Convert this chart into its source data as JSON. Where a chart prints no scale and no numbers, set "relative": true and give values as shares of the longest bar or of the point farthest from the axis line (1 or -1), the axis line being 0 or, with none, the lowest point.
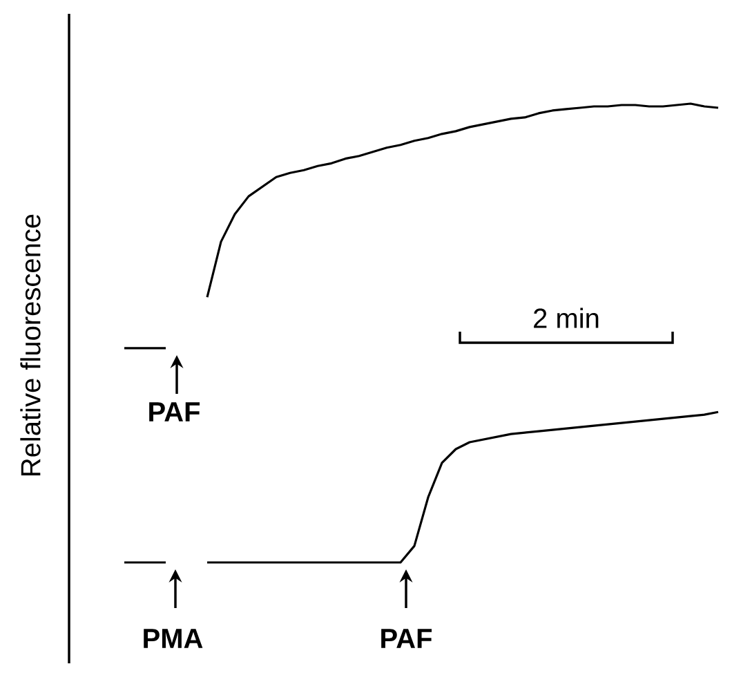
{
  "chart_data": {
    "type": "line",
    "relative": true,
    "ylabel": "Relative fluorescence",
    "marker": "none",
    "line_style": "solid",
    "categories": [
      null,
      null,
      null,
      null,
      null,
      null,
      null,
      null,
      null,
      null,
      null,
      null,
      null,
      null,
      null,
      null,
      null,
      null,
      null,
      null,
      null,
      null,
      null,
      null,
      null,
      null,
      null,
      null,
      null,
      null,
      null,
      null,
      null,
      null,
      null,
      null,
      null,
      null,
      null,
      null,
      null,
      null,
      null,
      null
    ],
    "series": [
      {
        "color": "#000000",
        "values": [
          0.467,
          0.467,
          0.467,
          0.467,
          null,
          null,
          null,
          null,
          null,
          null,
          null,
          null,
          null,
          null,
          null,
          null,
          null,
          null,
          null,
          null,
          null,
          null,
          null,
          null,
          null,
          null,
          null,
          null,
          null,
          null,
          null,
          null,
          null,
          null,
          null,
          null,
          null,
          null,
          null,
          null,
          null,
          null,
          null,
          null
        ]
      },
      {
        "color": "#000000",
        "values": [
          null,
          null,
          null,
          null,
          null,
          null,
          0.578,
          0.699,
          0.759,
          0.798,
          0.819,
          0.84,
          0.849,
          0.855,
          0.864,
          0.87,
          0.88,
          0.886,
          0.895,
          0.904,
          0.91,
          0.919,
          0.925,
          0.934,
          0.94,
          0.949,
          0.955,
          0.961,
          0.967,
          0.97,
          0.979,
          0.985,
          0.988,
          0.991,
          0.994,
          0.994,
          0.997,
          0.997,
          0.994,
          0.994,
          0.997,
          1.0,
          0.994,
          0.991
        ]
      },
      {
        "color": "#000000",
        "values": [
          0,
          0,
          0,
          0,
          null,
          null,
          null,
          null,
          null,
          null,
          null,
          null,
          null,
          null,
          null,
          null,
          null,
          null,
          null,
          null,
          null,
          null,
          null,
          null,
          null,
          null,
          null,
          null,
          null,
          null,
          null,
          null,
          null,
          null,
          null,
          null,
          null,
          null,
          null,
          null,
          null,
          null,
          null,
          null
        ]
      },
      {
        "color": "#000000",
        "values": [
          null,
          null,
          null,
          null,
          null,
          null,
          0,
          0,
          0,
          0,
          0,
          0,
          0,
          0,
          0,
          0,
          0,
          0,
          0,
          0,
          0,
          0.036,
          0.142,
          0.217,
          0.247,
          0.262,
          0.268,
          0.274,
          0.28,
          0.283,
          0.286,
          0.289,
          0.292,
          0.295,
          0.298,
          0.301,
          0.304,
          0.307,
          0.31,
          0.313,
          0.316,
          0.319,
          0.322,
          0.328
        ]
      }
    ],
    "annotations": [
      "PAF",
      "PMA",
      "PAF",
      "2 min"
    ]
  }
}
